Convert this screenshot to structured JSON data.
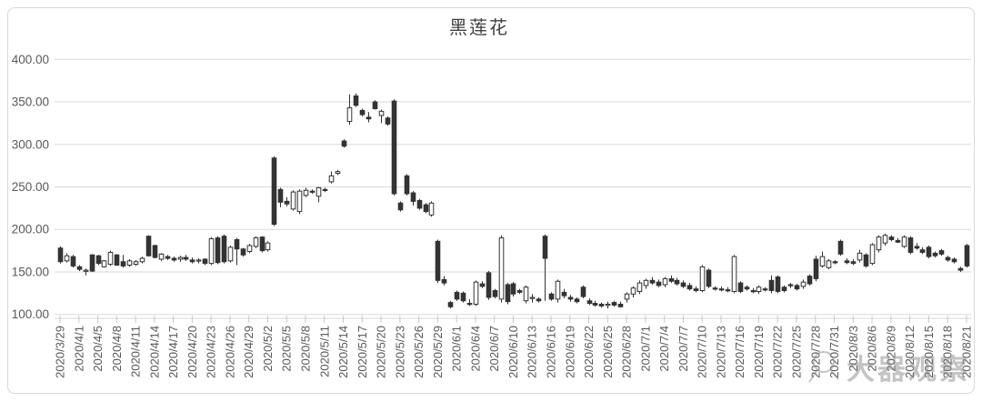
{
  "chart_data": {
    "type": "candlestick",
    "title": "黑莲花",
    "ylim": [
      100,
      400
    ],
    "y_tick_step": 50,
    "y_tick_labels": [
      "400.00",
      "350.00",
      "300.00",
      "250.00",
      "200.00",
      "150.00",
      "100.00"
    ],
    "grid": true,
    "label_step": 3,
    "x_labels": [
      "2020/3/29",
      "2020/4/1",
      "2020/4/5",
      "2020/4/8",
      "2020/4/11",
      "2020/4/14",
      "2020/4/17",
      "2020/4/20",
      "2020/4/23",
      "2020/4/26",
      "2020/4/29",
      "2020/5/2",
      "2020/5/5",
      "2020/5/8",
      "2020/5/11",
      "2020/5/14",
      "2020/5/17",
      "2020/5/20",
      "2020/5/23",
      "2020/5/26",
      "2020/5/29",
      "2020/6/1",
      "2020/6/4",
      "2020/6/7",
      "2020/6/10",
      "2020/6/13",
      "2020/6/16",
      "2020/6/19",
      "2020/6/22",
      "2020/6/25",
      "2020/6/28",
      "2020/7/1",
      "2020/7/4",
      "2020/7/7",
      "2020/7/10",
      "2020/7/13",
      "2020/7/16",
      "2020/7/19",
      "2020/7/22",
      "2020/7/25",
      "2020/7/28",
      "2020/7/31",
      "2020/8/3",
      "2020/8/6",
      "2020/8/9",
      "2020/8/12",
      "2020/8/15",
      "2020/8/18",
      "2020/8/21"
    ],
    "ohlc": [
      [
        178,
        180,
        160,
        162
      ],
      [
        163,
        172,
        161,
        169
      ],
      [
        168,
        170,
        155,
        157
      ],
      [
        156,
        158,
        151,
        153
      ],
      [
        152,
        154,
        146,
        152
      ],
      [
        170,
        171,
        150,
        151
      ],
      [
        169,
        170,
        158,
        160
      ],
      [
        156,
        164,
        155,
        163
      ],
      [
        159,
        175,
        157,
        173
      ],
      [
        170,
        171,
        157,
        158
      ],
      [
        162,
        170,
        155,
        157
      ],
      [
        158,
        165,
        156,
        163
      ],
      [
        159,
        164,
        157,
        162
      ],
      [
        162,
        168,
        160,
        166
      ],
      [
        192,
        193,
        168,
        169
      ],
      [
        181,
        182,
        166,
        167
      ],
      [
        165,
        172,
        163,
        171
      ],
      [
        168,
        170,
        164,
        166
      ],
      [
        166,
        168,
        162,
        164
      ],
      [
        165,
        169,
        162,
        167
      ],
      [
        167,
        170,
        163,
        165
      ],
      [
        164,
        167,
        160,
        162
      ],
      [
        163,
        166,
        160,
        164
      ],
      [
        165,
        166,
        158,
        160
      ],
      [
        160,
        191,
        158,
        189
      ],
      [
        190,
        192,
        159,
        161
      ],
      [
        192,
        194,
        160,
        162
      ],
      [
        163,
        181,
        161,
        179
      ],
      [
        188,
        190,
        158,
        177
      ],
      [
        177,
        178,
        168,
        170
      ],
      [
        174,
        183,
        172,
        181
      ],
      [
        180,
        192,
        178,
        190
      ],
      [
        191,
        192,
        173,
        175
      ],
      [
        176,
        186,
        174,
        184
      ],
      [
        284,
        286,
        204,
        206
      ],
      [
        247,
        249,
        226,
        232
      ],
      [
        233,
        238,
        227,
        230
      ],
      [
        224,
        246,
        222,
        244
      ],
      [
        221,
        247,
        218,
        245
      ],
      [
        240,
        249,
        238,
        246
      ],
      [
        245,
        247,
        242,
        244
      ],
      [
        239,
        250,
        232,
        249
      ],
      [
        247,
        249,
        244,
        246
      ],
      [
        256,
        268,
        254,
        263
      ],
      [
        266,
        270,
        264,
        268
      ],
      [
        304,
        306,
        296,
        298
      ],
      [
        327,
        359,
        323,
        343
      ],
      [
        357,
        360,
        344,
        346
      ],
      [
        340,
        342,
        333,
        335
      ],
      [
        332,
        338,
        326,
        330
      ],
      [
        350,
        352,
        341,
        342
      ],
      [
        334,
        341,
        325,
        339
      ],
      [
        331,
        333,
        322,
        324
      ],
      [
        351,
        353,
        240,
        242
      ],
      [
        231,
        233,
        221,
        223
      ],
      [
        263,
        265,
        240,
        242
      ],
      [
        243,
        245,
        228,
        233
      ],
      [
        234,
        236,
        223,
        225
      ],
      [
        229,
        231,
        219,
        221
      ],
      [
        217,
        233,
        215,
        231
      ],
      [
        186,
        188,
        137,
        140
      ],
      [
        141,
        145,
        134,
        137
      ],
      [
        114,
        116,
        107,
        109
      ],
      [
        126,
        128,
        116,
        118
      ],
      [
        125,
        127,
        114,
        116
      ],
      [
        113,
        118,
        110,
        112
      ],
      [
        112,
        140,
        110,
        138
      ],
      [
        136,
        139,
        131,
        133
      ],
      [
        149,
        151,
        117,
        120
      ],
      [
        128,
        130,
        119,
        121
      ],
      [
        118,
        193,
        114,
        190
      ],
      [
        135,
        137,
        112,
        115
      ],
      [
        136,
        138,
        121,
        124
      ],
      [
        128,
        130,
        124,
        126
      ],
      [
        116,
        134,
        113,
        132
      ],
      [
        119,
        124,
        114,
        120
      ],
      [
        118,
        120,
        114,
        116
      ],
      [
        192,
        194,
        116,
        166
      ],
      [
        124,
        126,
        116,
        118
      ],
      [
        118,
        141,
        114,
        139
      ],
      [
        126,
        130,
        119,
        122
      ],
      [
        120,
        123,
        115,
        118
      ],
      [
        118,
        120,
        113,
        115
      ],
      [
        132,
        134,
        119,
        121
      ],
      [
        116,
        119,
        111,
        113
      ],
      [
        113,
        116,
        109,
        111
      ],
      [
        112,
        114,
        108,
        110
      ],
      [
        111,
        115,
        107,
        112
      ],
      [
        114,
        116,
        109,
        111
      ],
      [
        112,
        115,
        108,
        109
      ],
      [
        118,
        126,
        114,
        124
      ],
      [
        124,
        133,
        120,
        131
      ],
      [
        127,
        140,
        124,
        137
      ],
      [
        134,
        142,
        130,
        140
      ],
      [
        140,
        144,
        135,
        137
      ],
      [
        138,
        141,
        132,
        134
      ],
      [
        135,
        144,
        132,
        142
      ],
      [
        142,
        146,
        137,
        139
      ],
      [
        140,
        143,
        134,
        136
      ],
      [
        137,
        140,
        131,
        133
      ],
      [
        134,
        137,
        128,
        130
      ],
      [
        130,
        133,
        126,
        128
      ],
      [
        128,
        158,
        126,
        156
      ],
      [
        152,
        154,
        131,
        133
      ],
      [
        131,
        133,
        128,
        130
      ],
      [
        130,
        133,
        127,
        129
      ],
      [
        129,
        132,
        126,
        128
      ],
      [
        127,
        170,
        125,
        168
      ],
      [
        137,
        139,
        125,
        127
      ],
      [
        132,
        134,
        128,
        130
      ],
      [
        128,
        131,
        125,
        127
      ],
      [
        127,
        134,
        124,
        132
      ],
      [
        130,
        132,
        127,
        129
      ],
      [
        140,
        146,
        125,
        128
      ],
      [
        144,
        146,
        125,
        127
      ],
      [
        132,
        134,
        126,
        128
      ],
      [
        135,
        137,
        131,
        134
      ],
      [
        134,
        136,
        128,
        130
      ],
      [
        133,
        141,
        130,
        138
      ],
      [
        145,
        147,
        134,
        136
      ],
      [
        165,
        169,
        139,
        142
      ],
      [
        157,
        174,
        155,
        168
      ],
      [
        155,
        165,
        153,
        163
      ],
      [
        162,
        164,
        159,
        161
      ],
      [
        186,
        188,
        169,
        171
      ],
      [
        163,
        166,
        159,
        161
      ],
      [
        162,
        165,
        158,
        160
      ],
      [
        164,
        176,
        161,
        172
      ],
      [
        170,
        172,
        155,
        157
      ],
      [
        160,
        184,
        158,
        182
      ],
      [
        176,
        193,
        173,
        191
      ],
      [
        184,
        195,
        181,
        193
      ],
      [
        191,
        193,
        186,
        188
      ],
      [
        187,
        190,
        184,
        185
      ],
      [
        180,
        193,
        178,
        191
      ],
      [
        190,
        192,
        171,
        173
      ],
      [
        180,
        184,
        176,
        178
      ],
      [
        176,
        179,
        171,
        173
      ],
      [
        179,
        181,
        166,
        168
      ],
      [
        172,
        174,
        167,
        169
      ],
      [
        175,
        177,
        169,
        171
      ],
      [
        167,
        169,
        162,
        164
      ],
      [
        165,
        167,
        160,
        162
      ],
      [
        154,
        156,
        150,
        152
      ],
      [
        181,
        183,
        155,
        157
      ]
    ]
  },
  "watermark": {
    "text": "大器观察"
  },
  "colors": {
    "grid": "#d9d9d9",
    "axis_text": "#595959",
    "tick": "#c9c9c9",
    "candle_stroke": "#333333",
    "candle_down_fill": "#333333",
    "candle_up_fill": "#ffffff",
    "title_text": "#404040",
    "border": "#d8d8d8",
    "watermark_gray": "#8a8a8a"
  }
}
